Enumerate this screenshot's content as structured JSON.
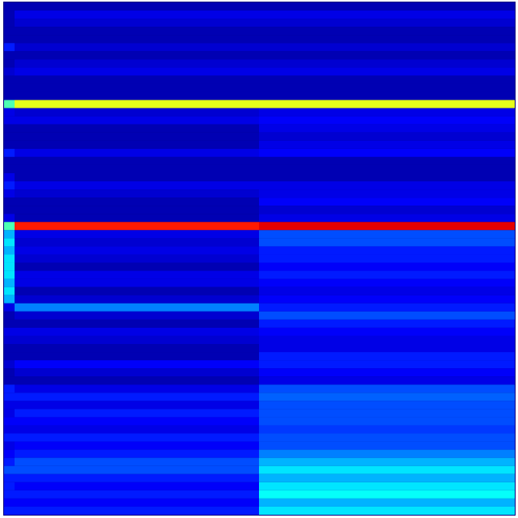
{
  "chart_data": {
    "type": "heatmap",
    "colormap": "jet",
    "xbins": [
      0,
      13,
      315,
      631
    ],
    "ylim": [
      0,
      63
    ],
    "values": [
      [
        0.05,
        0.05,
        0.05
      ],
      [
        0.05,
        0.1,
        0.1
      ],
      [
        0.05,
        0.08,
        0.08
      ],
      [
        0.05,
        0.05,
        0.05
      ],
      [
        0.05,
        0.05,
        0.05
      ],
      [
        0.15,
        0.08,
        0.08
      ],
      [
        0.05,
        0.05,
        0.05
      ],
      [
        0.05,
        0.08,
        0.08
      ],
      [
        0.08,
        0.1,
        0.1
      ],
      [
        0.05,
        0.05,
        0.05
      ],
      [
        0.05,
        0.05,
        0.05
      ],
      [
        0.05,
        0.05,
        0.05
      ],
      [
        0.45,
        0.6,
        0.6
      ],
      [
        0.1,
        0.08,
        0.1
      ],
      [
        0.1,
        0.1,
        0.12
      ],
      [
        0.05,
        0.05,
        0.1
      ],
      [
        0.05,
        0.05,
        0.08
      ],
      [
        0.05,
        0.05,
        0.1
      ],
      [
        0.15,
        0.1,
        0.12
      ],
      [
        0.05,
        0.05,
        0.05
      ],
      [
        0.05,
        0.05,
        0.05
      ],
      [
        0.1,
        0.05,
        0.05
      ],
      [
        0.15,
        0.1,
        0.1
      ],
      [
        0.1,
        0.08,
        0.1
      ],
      [
        0.05,
        0.05,
        0.12
      ],
      [
        0.05,
        0.05,
        0.08
      ],
      [
        0.1,
        0.05,
        0.1
      ],
      [
        0.45,
        0.85,
        0.9
      ],
      [
        0.3,
        0.1,
        0.2
      ],
      [
        0.35,
        0.08,
        0.2
      ],
      [
        0.3,
        0.1,
        0.15
      ],
      [
        0.35,
        0.08,
        0.15
      ],
      [
        0.35,
        0.05,
        0.12
      ],
      [
        0.35,
        0.1,
        0.15
      ],
      [
        0.3,
        0.1,
        0.12
      ],
      [
        0.35,
        0.05,
        0.1
      ],
      [
        0.3,
        0.08,
        0.12
      ],
      [
        0.1,
        0.25,
        0.15
      ],
      [
        0.05,
        0.08,
        0.2
      ],
      [
        0.05,
        0.05,
        0.15
      ],
      [
        0.1,
        0.1,
        0.12
      ],
      [
        0.08,
        0.08,
        0.1
      ],
      [
        0.05,
        0.05,
        0.1
      ],
      [
        0.05,
        0.05,
        0.15
      ],
      [
        0.08,
        0.12,
        0.15
      ],
      [
        0.05,
        0.08,
        0.12
      ],
      [
        0.05,
        0.05,
        0.1
      ],
      [
        0.15,
        0.1,
        0.2
      ],
      [
        0.15,
        0.15,
        0.22
      ],
      [
        0.1,
        0.1,
        0.2
      ],
      [
        0.1,
        0.15,
        0.2
      ],
      [
        0.12,
        0.12,
        0.2
      ],
      [
        0.1,
        0.1,
        0.18
      ],
      [
        0.15,
        0.15,
        0.2
      ],
      [
        0.1,
        0.12,
        0.2
      ],
      [
        0.12,
        0.15,
        0.25
      ],
      [
        0.15,
        0.2,
        0.3
      ],
      [
        0.2,
        0.2,
        0.35
      ],
      [
        0.15,
        0.15,
        0.3
      ],
      [
        0.15,
        0.12,
        0.35
      ],
      [
        0.15,
        0.15,
        0.38
      ],
      [
        0.12,
        0.12,
        0.3
      ],
      [
        0.15,
        0.15,
        0.35
      ]
    ]
  }
}
